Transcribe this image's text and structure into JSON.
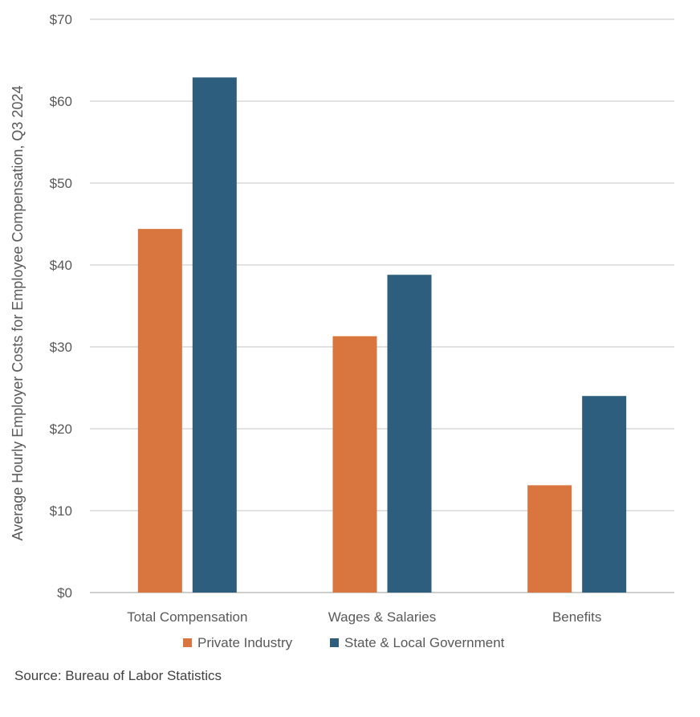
{
  "chart_data": {
    "type": "bar",
    "categories": [
      "Total Compensation",
      "Wages & Salaries",
      "Benefits"
    ],
    "series": [
      {
        "name": "Private Industry",
        "values": [
          44.4,
          31.3,
          13.1
        ],
        "color": "#D9763F"
      },
      {
        "name": "State & Local Government",
        "values": [
          62.9,
          38.8,
          24.0
        ],
        "color": "#2E5E7E"
      }
    ],
    "ylabel": "Average Hourly Employer Costs for Employee Compensation, Q3 2024",
    "ylim": [
      0,
      70
    ],
    "yticks": [
      0,
      10,
      20,
      30,
      40,
      50,
      60,
      70
    ],
    "ytick_labels": [
      "$0",
      "$10",
      "$20",
      "$30",
      "$40",
      "$50",
      "$60",
      "$70"
    ],
    "grid": true,
    "legend_position": "bottom"
  },
  "source": "Source: Bureau of Labor Statistics"
}
